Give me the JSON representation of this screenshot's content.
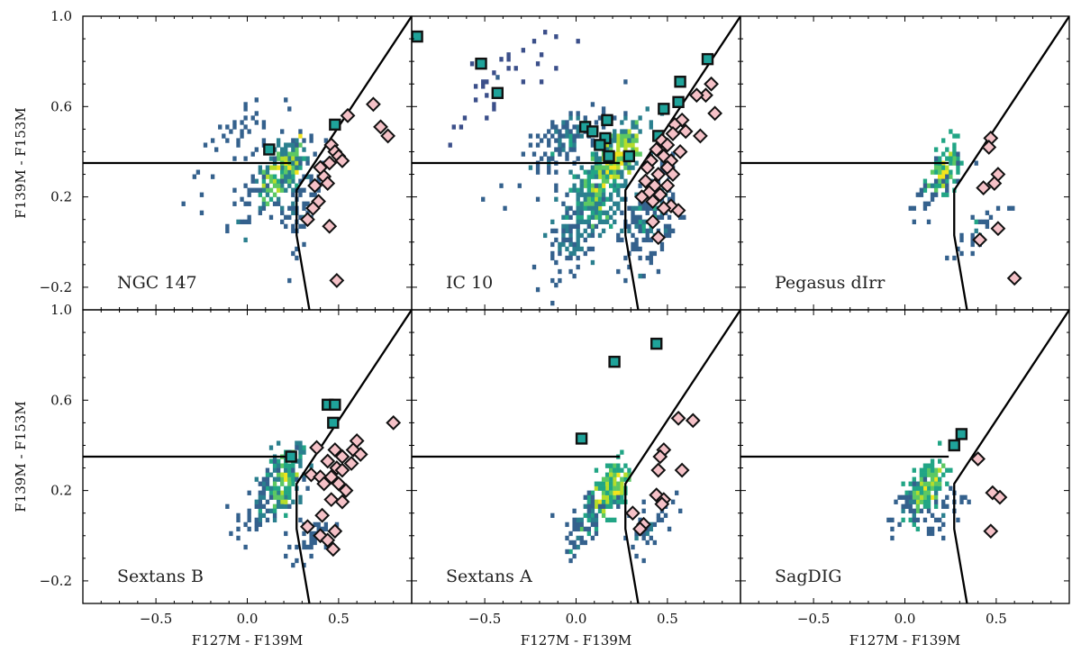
{
  "figure": {
    "xlabel": "F127M - F139M",
    "ylabel": "F139M - F153M",
    "colors": {
      "density_low": "#3b4f8a",
      "density_mid": "#2a9d8f",
      "density_high": "#f2e41c",
      "square_fill": "#1fa39a",
      "diamond_fill": "#f5c1c7",
      "outline": "#111111",
      "boundary": "#000000"
    }
  },
  "chart_data": [
    {
      "type": "scatter",
      "name": "NGC 147",
      "xlim": [
        -0.9,
        0.9
      ],
      "ylim": [
        -0.3,
        1.0
      ],
      "xticks": [
        "-0.5",
        "0.0",
        "0.5"
      ],
      "yticks": [
        "-0.2",
        "0.2",
        "0.6",
        "1.0"
      ],
      "xlabel": "",
      "ylabel": "F139M - F153M",
      "boundary": {
        "horizontal": [
          [
            -0.9,
            0.35
          ],
          [
            0.24,
            0.35
          ]
        ],
        "lower": [
          [
            0.34,
            -0.3
          ],
          [
            0.27,
            0.03
          ],
          [
            0.27,
            0.23
          ],
          [
            0.9,
            1.0
          ]
        ]
      },
      "squares": [
        [
          0.12,
          0.41
        ],
        [
          0.48,
          0.52
        ]
      ],
      "diamonds": [
        [
          0.55,
          0.56
        ],
        [
          0.69,
          0.61
        ],
        [
          0.73,
          0.51
        ],
        [
          0.77,
          0.47
        ],
        [
          0.46,
          0.43
        ],
        [
          0.48,
          0.4
        ],
        [
          0.5,
          0.38
        ],
        [
          0.52,
          0.36
        ],
        [
          0.45,
          0.35
        ],
        [
          0.4,
          0.33
        ],
        [
          0.42,
          0.29
        ],
        [
          0.44,
          0.26
        ],
        [
          0.37,
          0.25
        ],
        [
          0.39,
          0.18
        ],
        [
          0.36,
          0.15
        ],
        [
          0.33,
          0.1
        ],
        [
          0.45,
          0.07
        ],
        [
          0.49,
          -0.17
        ]
      ]
    },
    {
      "type": "scatter",
      "name": "IC 10",
      "xlim": [
        -0.9,
        0.9
      ],
      "ylim": [
        -0.3,
        1.0
      ],
      "xticks": [
        "-0.5",
        "0.0",
        "0.5"
      ],
      "yticks": [
        "-0.2",
        "0.2",
        "0.6",
        "1.0"
      ],
      "xlabel": "",
      "ylabel": "",
      "boundary": {
        "horizontal": [
          [
            -0.9,
            0.35
          ],
          [
            0.24,
            0.35
          ]
        ],
        "lower": [
          [
            0.34,
            -0.3
          ],
          [
            0.27,
            0.03
          ],
          [
            0.27,
            0.23
          ],
          [
            0.9,
            1.0
          ]
        ]
      },
      "squares": [
        [
          -0.87,
          0.91
        ],
        [
          -0.52,
          0.79
        ],
        [
          -0.43,
          0.66
        ],
        [
          0.72,
          0.81
        ],
        [
          0.57,
          0.71
        ],
        [
          0.56,
          0.62
        ],
        [
          0.48,
          0.59
        ],
        [
          0.17,
          0.54
        ],
        [
          0.05,
          0.51
        ],
        [
          0.09,
          0.49
        ],
        [
          0.16,
          0.46
        ],
        [
          0.13,
          0.43
        ],
        [
          0.45,
          0.47
        ],
        [
          0.18,
          0.38
        ],
        [
          0.29,
          0.38
        ]
      ],
      "diamonds": [
        [
          0.74,
          0.7
        ],
        [
          0.71,
          0.65
        ],
        [
          0.66,
          0.65
        ],
        [
          0.76,
          0.57
        ],
        [
          0.58,
          0.54
        ],
        [
          0.54,
          0.52
        ],
        [
          0.6,
          0.49
        ],
        [
          0.53,
          0.48
        ],
        [
          0.68,
          0.47
        ],
        [
          0.47,
          0.45
        ],
        [
          0.5,
          0.43
        ],
        [
          0.44,
          0.41
        ],
        [
          0.57,
          0.4
        ],
        [
          0.48,
          0.38
        ],
        [
          0.52,
          0.36
        ],
        [
          0.41,
          0.36
        ],
        [
          0.39,
          0.33
        ],
        [
          0.5,
          0.33
        ],
        [
          0.45,
          0.3
        ],
        [
          0.53,
          0.3
        ],
        [
          0.38,
          0.27
        ],
        [
          0.43,
          0.25
        ],
        [
          0.5,
          0.25
        ],
        [
          0.4,
          0.22
        ],
        [
          0.46,
          0.21
        ],
        [
          0.36,
          0.2
        ],
        [
          0.42,
          0.18
        ],
        [
          0.52,
          0.16
        ],
        [
          0.48,
          0.15
        ],
        [
          0.56,
          0.14
        ],
        [
          0.42,
          0.09
        ],
        [
          0.45,
          0.02
        ]
      ]
    },
    {
      "type": "scatter",
      "name": "Pegasus dIrr",
      "xlim": [
        -0.9,
        0.9
      ],
      "ylim": [
        -0.3,
        1.0
      ],
      "xticks": [
        "-0.5",
        "0.0",
        "0.5"
      ],
      "yticks": [
        "-0.2",
        "0.2",
        "0.6",
        "1.0"
      ],
      "xlabel": "",
      "ylabel": "",
      "boundary": {
        "horizontal": [
          [
            -0.9,
            0.35
          ],
          [
            0.24,
            0.35
          ]
        ],
        "lower": [
          [
            0.34,
            -0.3
          ],
          [
            0.27,
            0.03
          ],
          [
            0.27,
            0.23
          ],
          [
            0.9,
            1.0
          ]
        ]
      },
      "squares": [],
      "diamonds": [
        [
          0.47,
          0.46
        ],
        [
          0.46,
          0.42
        ],
        [
          0.51,
          0.3
        ],
        [
          0.49,
          0.26
        ],
        [
          0.43,
          0.24
        ],
        [
          0.51,
          0.06
        ],
        [
          0.41,
          0.01
        ],
        [
          0.6,
          -0.16
        ]
      ]
    },
    {
      "type": "scatter",
      "name": "Sextans B",
      "xlim": [
        -0.9,
        0.9
      ],
      "ylim": [
        -0.3,
        1.0
      ],
      "xticks": [
        "-0.5",
        "0.0",
        "0.5"
      ],
      "yticks": [
        "-0.2",
        "0.2",
        "0.6",
        "1.0"
      ],
      "xlabel": "F127M - F139M",
      "ylabel": "F139M - F153M",
      "boundary": {
        "horizontal": [
          [
            -0.9,
            0.35
          ],
          [
            0.24,
            0.35
          ]
        ],
        "lower": [
          [
            0.34,
            -0.3
          ],
          [
            0.27,
            0.03
          ],
          [
            0.27,
            0.23
          ],
          [
            0.9,
            1.0
          ]
        ]
      },
      "squares": [
        [
          0.44,
          0.58
        ],
        [
          0.48,
          0.58
        ],
        [
          0.47,
          0.5
        ],
        [
          0.24,
          0.35
        ]
      ],
      "diamonds": [
        [
          0.8,
          0.5
        ],
        [
          0.6,
          0.42
        ],
        [
          0.38,
          0.39
        ],
        [
          0.48,
          0.38
        ],
        [
          0.58,
          0.38
        ],
        [
          0.52,
          0.35
        ],
        [
          0.62,
          0.36
        ],
        [
          0.44,
          0.33
        ],
        [
          0.57,
          0.32
        ],
        [
          0.49,
          0.3
        ],
        [
          0.52,
          0.29
        ],
        [
          0.35,
          0.27
        ],
        [
          0.4,
          0.26
        ],
        [
          0.46,
          0.26
        ],
        [
          0.42,
          0.23
        ],
        [
          0.5,
          0.23
        ],
        [
          0.54,
          0.2
        ],
        [
          0.46,
          0.16
        ],
        [
          0.52,
          0.15
        ],
        [
          0.41,
          0.09
        ],
        [
          0.33,
          0.04
        ],
        [
          0.48,
          0.02
        ],
        [
          0.4,
          0.0
        ],
        [
          0.44,
          -0.02
        ],
        [
          0.47,
          -0.06
        ]
      ]
    },
    {
      "type": "scatter",
      "name": "Sextans A",
      "xlim": [
        -0.9,
        0.9
      ],
      "ylim": [
        -0.3,
        1.0
      ],
      "xticks": [
        "-0.5",
        "0.0",
        "0.5"
      ],
      "yticks": [
        "-0.2",
        "0.2",
        "0.6",
        "1.0"
      ],
      "xlabel": "F127M - F139M",
      "ylabel": "",
      "boundary": {
        "horizontal": [
          [
            -0.9,
            0.35
          ],
          [
            0.24,
            0.35
          ]
        ],
        "lower": [
          [
            0.34,
            -0.3
          ],
          [
            0.27,
            0.03
          ],
          [
            0.27,
            0.23
          ],
          [
            0.9,
            1.0
          ]
        ]
      },
      "squares": [
        [
          0.44,
          0.85
        ],
        [
          0.21,
          0.77
        ],
        [
          0.03,
          0.43
        ]
      ],
      "diamonds": [
        [
          0.56,
          0.52
        ],
        [
          0.64,
          0.51
        ],
        [
          0.48,
          0.38
        ],
        [
          0.46,
          0.35
        ],
        [
          0.58,
          0.29
        ],
        [
          0.45,
          0.29
        ],
        [
          0.44,
          0.18
        ],
        [
          0.48,
          0.16
        ],
        [
          0.47,
          0.14
        ],
        [
          0.31,
          0.1
        ],
        [
          0.37,
          0.05
        ],
        [
          0.35,
          0.03
        ]
      ]
    },
    {
      "type": "scatter",
      "name": "SagDIG",
      "xlim": [
        -0.9,
        0.9
      ],
      "ylim": [
        -0.3,
        1.0
      ],
      "xticks": [
        "-0.5",
        "0.0",
        "0.5"
      ],
      "yticks": [
        "-0.2",
        "0.2",
        "0.6",
        "1.0"
      ],
      "xlabel": "F127M - F139M",
      "ylabel": "",
      "boundary": {
        "horizontal": [
          [
            -0.9,
            0.35
          ],
          [
            0.24,
            0.35
          ]
        ],
        "lower": [
          [
            0.34,
            -0.3
          ],
          [
            0.27,
            0.03
          ],
          [
            0.27,
            0.23
          ],
          [
            0.9,
            1.0
          ]
        ]
      },
      "squares": [
        [
          0.31,
          0.45
        ],
        [
          0.27,
          0.4
        ]
      ],
      "diamonds": [
        [
          0.4,
          0.34
        ],
        [
          0.48,
          0.19
        ],
        [
          0.52,
          0.17
        ],
        [
          0.47,
          0.02
        ]
      ]
    }
  ]
}
